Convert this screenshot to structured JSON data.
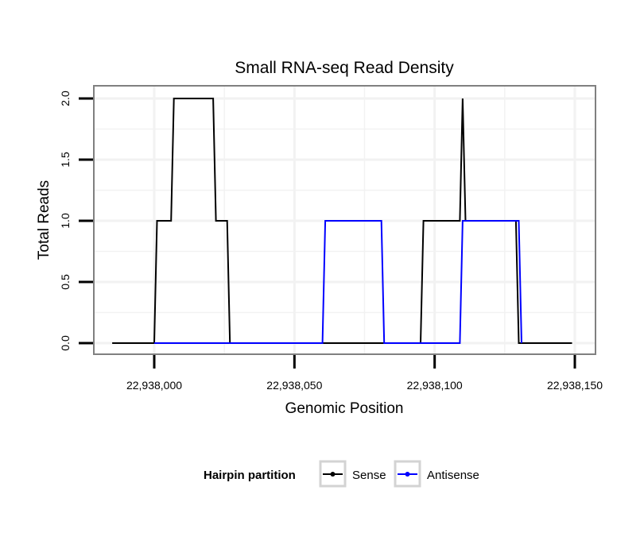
{
  "chart_data": {
    "type": "line",
    "title": "Small RNA-seq Read Density",
    "xlabel": "Genomic Position",
    "ylabel": "Total Reads",
    "xlim": [
      22937985,
      22938150
    ],
    "ylim": [
      0,
      2
    ],
    "x_ticks": [
      22938000,
      22938050,
      22938100,
      22938150
    ],
    "x_tick_labels": [
      "22,938,000",
      "22,938,050",
      "22,938,100",
      "22,938,150"
    ],
    "y_ticks": [
      0,
      0.5,
      1,
      1.5,
      2
    ],
    "y_tick_labels": [
      "0.0",
      "0.5",
      "1.0",
      "1.5",
      "2.0"
    ],
    "grid": true,
    "legend": {
      "title": "Hairpin partition",
      "position": "bottom"
    },
    "series": [
      {
        "name": "Sense",
        "color": "#000000",
        "x": [
          22937985,
          22938000,
          22938001,
          22938006,
          22938007,
          22938021,
          22938022,
          22938026,
          22938027,
          22938095,
          22938096,
          22938109,
          22938110,
          22938111,
          22938129,
          22938130,
          22938149
        ],
        "y": [
          0,
          0,
          1,
          1,
          2,
          2,
          1,
          1,
          0,
          0,
          1,
          1,
          2,
          1,
          1,
          0,
          0
        ]
      },
      {
        "name": "Antisense",
        "color": "#0000FF",
        "x": [
          22938000,
          22938026,
          22938060,
          22938061,
          22938081,
          22938082,
          22938109,
          22938110,
          22938130,
          22938131
        ],
        "y": [
          0,
          0,
          0,
          1,
          1,
          0,
          0,
          1,
          1,
          0
        ]
      }
    ]
  }
}
